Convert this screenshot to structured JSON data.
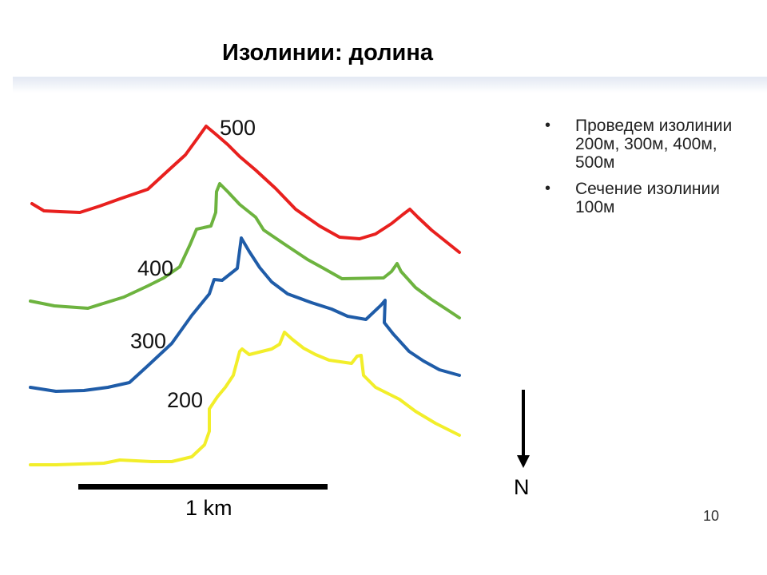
{
  "title": "Изолинии: долина",
  "contours": [
    {
      "label": "500",
      "color": "#e8201e"
    },
    {
      "label": "400",
      "color": "#6db33f"
    },
    {
      "label": "300",
      "color": "#1f5ca8"
    },
    {
      "label": "200",
      "color": "#f2ee2a"
    }
  ],
  "bullets": [
    {
      "text": "Проведем изолинии 200м, 300м, 400м, 500м"
    },
    {
      "text": "Сечение изолинии 100м"
    }
  ],
  "north_label": "N",
  "scale_label": "1 km",
  "page_number": "10"
}
